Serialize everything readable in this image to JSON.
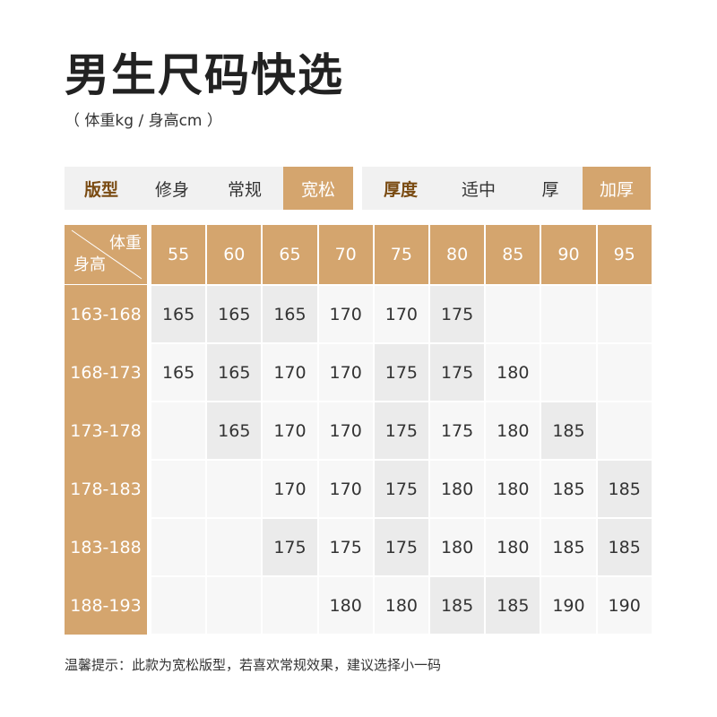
{
  "title": "男生尺码快选",
  "subtitle": "（ 体重kg / 身高cm ）",
  "filters": {
    "style": {
      "label": "版型",
      "options": [
        "修身",
        "常规",
        "宽松"
      ],
      "active": "宽松"
    },
    "thickness": {
      "label": "厚度",
      "options": [
        "适中",
        "厚",
        "加厚"
      ],
      "active": "加厚"
    }
  },
  "table": {
    "corner_weight": "体重",
    "corner_height": "身高",
    "weights": [
      "55",
      "60",
      "65",
      "70",
      "75",
      "80",
      "85",
      "90",
      "95"
    ],
    "heights": [
      "163-168",
      "168-173",
      "173-178",
      "178-183",
      "183-188",
      "188-193"
    ],
    "rows": [
      [
        "165",
        "165",
        "165",
        "170",
        "170",
        "175",
        "",
        "",
        ""
      ],
      [
        "165",
        "165",
        "170",
        "170",
        "175",
        "175",
        "180",
        "",
        ""
      ],
      [
        "",
        "165",
        "170",
        "170",
        "175",
        "175",
        "180",
        "185",
        ""
      ],
      [
        "",
        "",
        "170",
        "170",
        "175",
        "180",
        "180",
        "185",
        "185"
      ],
      [
        "",
        "",
        "175",
        "175",
        "175",
        "180",
        "180",
        "185",
        "185"
      ],
      [
        "",
        "",
        "",
        "180",
        "180",
        "185",
        "185",
        "190",
        "190"
      ]
    ]
  },
  "footnote": "温馨提示：此款为宽松版型，若喜欢常规效果，建议选择小一码",
  "colors": {
    "accent": "#d4a56e",
    "label": "#7a4b12",
    "cell_light": "#f7f7f7",
    "cell_dark": "#ebebeb"
  }
}
